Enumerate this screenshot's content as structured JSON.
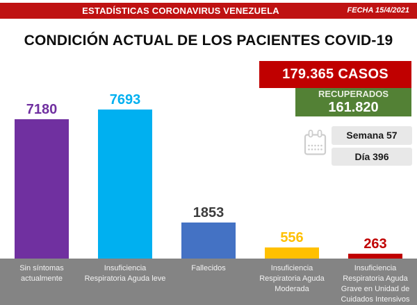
{
  "header": {
    "title": "ESTADÍSTICAS CORONAVIRUS VENEZUELA",
    "date": "FECHA 15/4/2021"
  },
  "page_title": "CONDICIÓN ACTUAL DE LOS PACIENTES COVID-19",
  "stats": {
    "cases": "179.365 CASOS",
    "recovered_label": "RECUPERADOS",
    "recovered_value": "161.820",
    "week": "Semana 57",
    "day": "Día 396"
  },
  "colors": {
    "banner_red": "#bf1212",
    "cases_red": "#c00000",
    "recovered_green": "#538135",
    "pill_gray": "#e8e8e8",
    "footer_gray": "#848484",
    "calendar_icon_gray": "#cdcdcd"
  },
  "chart_data": {
    "type": "bar",
    "title": "CONDICIÓN ACTUAL DE LOS PACIENTES COVID-19",
    "categories": [
      "Sin síntomas\nactualmente",
      "Insuficiencia\nRespiratoria Aguda leve",
      "Fallecidos",
      "Insuficiencia\nRespiratoria Aguda\nModerada",
      "Insuficiencia\nRespiratoria Aguda\nGrave en Unidad de\nCuidados Intensivos"
    ],
    "values": [
      7180,
      7693,
      1853,
      556,
      263
    ],
    "bar_colors": [
      "#7030a0",
      "#00b0f0",
      "#4472c4",
      "#ffc000",
      "#c00000"
    ],
    "value_label_colors": [
      "#7030a0",
      "#00b0f0",
      "#3c3c3c",
      "#ffc000",
      "#c00000"
    ],
    "xlabel": "",
    "ylabel": "",
    "ylim": [
      0,
      7693
    ],
    "grid": false,
    "legend": false,
    "value_labels_shown": true
  }
}
